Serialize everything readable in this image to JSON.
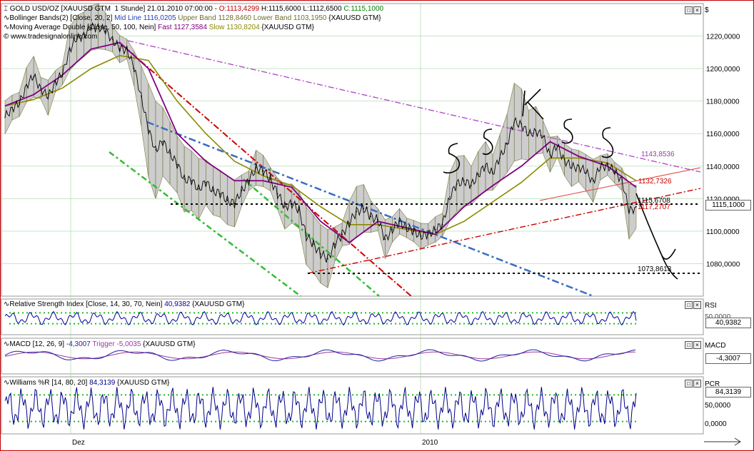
{
  "main_legend": {
    "symbol": "GOLD USD/OZ [XAUUSD GTM  1 Stunde] 21.01.2010 07:00:00 - ",
    "open": "O:1113,4299",
    "high": "H:1115,6000",
    "low": "L:1112,6500",
    "close": "C:1115,1000",
    "bb_name": "Bollinger Bands(2) [Close, 20, 2] ",
    "bb_mid": "Mid Line 1116,0205",
    "bb_upper": "Upper Band 1128,8460",
    "bb_lower": "Lower Band 1103,1950",
    "bb_suffix": " {XAUUSD GTM}",
    "ma_name": "Moving Average Double [Close, 50, 100, Nein] ",
    "ma_fast": "Fast 1127,3584",
    "ma_slow": "Slow 1130,8204",
    "ma_suffix": " {XAUUSD GTM}",
    "copyright": "© www.tradesignalonline.com"
  },
  "currency_label": "$",
  "date_labels": [
    "Dez",
    "2010"
  ],
  "annotations": {
    "handwritten": [
      "S",
      "S",
      "K",
      "S",
      "S"
    ],
    "price_labels": [
      "1143,8536",
      "1132,7326",
      "1115,6708",
      "1117,2707",
      "1073,8613"
    ],
    "current_price": "1115,1000"
  },
  "rsi_panel": {
    "legend_name": "Relative Strength Index [Close, 14, 30, 70, Nein] ",
    "legend_value": "40,9382",
    "legend_suffix": " {XAUUSD GTM}",
    "label": "RSI",
    "tick": "50,0000",
    "value": "40,9382"
  },
  "macd_panel": {
    "legend_name": "MACD [12, 26, 9] ",
    "legend_value": "-4,3007",
    "legend_trigger": " Trigger -5,0035",
    "legend_suffix": " {XAUUSD GTM}",
    "label": "MACD",
    "value": "-4,3007"
  },
  "wr_panel": {
    "legend_name": "Williams %R [14, 80, 20] ",
    "legend_value": "84,3139",
    "legend_suffix": " {XAUUSD GTM}",
    "label": "PCR",
    "ticks": [
      "50,0000",
      "0,0000"
    ],
    "value": "84,3139"
  },
  "colors": {
    "price_line": "#000000",
    "bb_fill": "#c8c8c8",
    "bb_outline": "#6e6e2e",
    "ma_fast": "#800080",
    "ma_slow": "#8a8a00",
    "rsi": "#0000a0",
    "macd": "#2020a0",
    "trigger": "#9a3aa0",
    "wr": "#00008b",
    "green_dots": "#22bb22",
    "red": "#cc0000",
    "blue_dash": "#3a6ec0",
    "green_dash": "#33bb33",
    "purple_dash": "#b050c8"
  },
  "chart_data": {
    "type": "line",
    "title": "GOLD USD/OZ [XAUUSD GTM  1 Stunde]",
    "ylim": [
      1060,
      1240
    ],
    "y_ticks": [
      1080,
      1100,
      1120,
      1140,
      1160,
      1180,
      1200,
      1220
    ],
    "y_tick_labels": [
      "1080,0000",
      "1100,0000",
      "1120,0000",
      "1140,0000",
      "1160,0000",
      "1180,0000",
      "1200,0000",
      "1220,0000"
    ],
    "grid": true,
    "series": [
      {
        "name": "GOLD USD/OZ [XAUUSD GTM  1 Stunde]",
        "x": [
          0,
          10,
          20,
          30,
          40,
          50,
          60,
          70,
          80,
          90,
          100,
          110,
          120,
          130,
          140,
          150,
          160,
          170,
          180,
          190,
          200,
          210,
          220,
          230,
          240,
          250,
          260,
          270,
          280,
          290,
          300,
          310,
          320,
          330,
          340,
          350,
          360,
          370,
          380,
          390,
          400,
          410,
          420,
          430,
          440,
          450,
          460,
          470,
          480,
          490,
          500,
          510,
          520,
          530,
          540,
          550,
          560,
          570,
          580,
          590,
          600,
          610,
          620,
          630,
          640,
          650,
          660,
          670,
          680,
          690,
          700,
          710,
          720,
          730,
          740,
          750,
          760,
          770,
          780,
          790,
          800,
          810,
          820,
          830,
          840,
          850,
          860,
          870,
          880
        ],
        "values": [
          1170,
          1176,
          1178,
          1190,
          1195,
          1188,
          1182,
          1192,
          1196,
          1212,
          1218,
          1221,
          1225,
          1226,
          1223,
          1218,
          1212,
          1212,
          1200,
          1183,
          1162,
          1150,
          1155,
          1148,
          1141,
          1132,
          1131,
          1126,
          1130,
          1125,
          1123,
          1119,
          1117,
          1125,
          1131,
          1139,
          1137,
          1132,
          1123,
          1115,
          1117,
          1113,
          1097,
          1092,
          1086,
          1083,
          1092,
          1098,
          1105,
          1112,
          1114,
          1109,
          1107,
          1095,
          1101,
          1106,
          1102,
          1100,
          1097,
          1098,
          1101,
          1104,
          1121,
          1129,
          1131,
          1128,
          1135,
          1140,
          1136,
          1145,
          1154,
          1167,
          1166,
          1159,
          1162,
          1158,
          1147,
          1152,
          1144,
          1139,
          1140,
          1136,
          1131,
          1139,
          1141,
          1136,
          1132,
          1112,
          1115
        ]
      },
      {
        "name": "Fast",
        "x": [
          0,
          40,
          80,
          120,
          160,
          200,
          240,
          280,
          320,
          360,
          400,
          440,
          480,
          520,
          560,
          600,
          640,
          680,
          720,
          760,
          800,
          840,
          880
        ],
        "values": [
          1177,
          1184,
          1196,
          1212,
          1216,
          1200,
          1160,
          1143,
          1131,
          1131,
          1127,
          1106,
          1093,
          1106,
          1102,
          1098,
          1115,
          1128,
          1140,
          1155,
          1146,
          1140,
          1127
        ]
      },
      {
        "name": "Slow",
        "x": [
          0,
          40,
          80,
          120,
          160,
          200,
          240,
          280,
          320,
          360,
          400,
          440,
          480,
          520,
          560,
          600,
          640,
          680,
          720,
          760,
          800,
          840,
          880
        ],
        "values": [
          1177,
          1181,
          1188,
          1200,
          1208,
          1205,
          1180,
          1160,
          1143,
          1134,
          1128,
          1115,
          1104,
          1104,
          1101,
          1098,
          1106,
          1118,
          1130,
          1145,
          1145,
          1142,
          1131
        ]
      }
    ],
    "horizontal_levels": [
      1115.6708,
      1073.8613
    ],
    "rsi_levels": [
      30,
      70
    ],
    "wr_levels": [
      20,
      80
    ],
    "last_values": {
      "rsi": 40.9382,
      "macd": -4.3007,
      "trigger": -5.0035,
      "wr": 84.3139
    }
  }
}
